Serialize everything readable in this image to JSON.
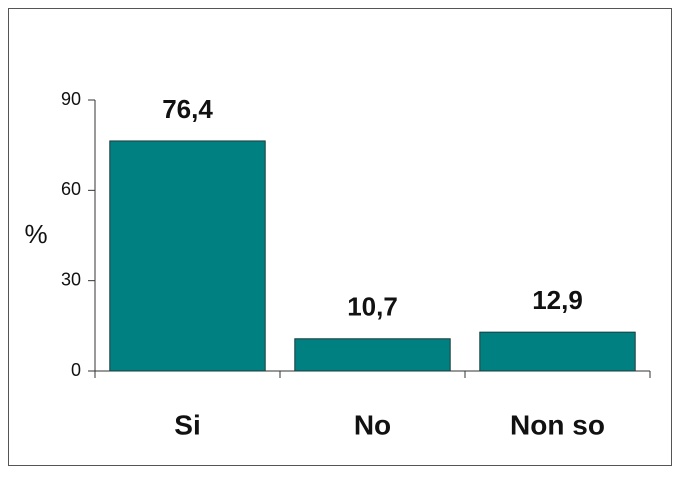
{
  "chart_data": {
    "type": "bar",
    "ylabel": "%",
    "categories": [
      "Si",
      "No",
      "Non so"
    ],
    "values": [
      76.4,
      10.7,
      12.9
    ],
    "value_labels": [
      "76,4",
      "10,7",
      "12,9"
    ],
    "color": "#008080",
    "ylim": [
      0,
      90
    ],
    "yticks": [
      0,
      30,
      60,
      90
    ],
    "grid": false
  }
}
